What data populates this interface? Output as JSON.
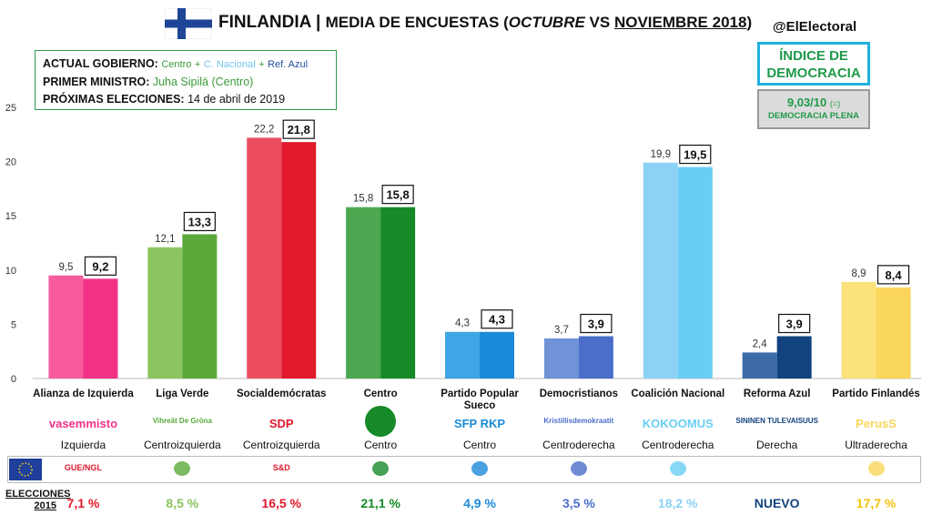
{
  "header": {
    "country": "FINLANDIA",
    "sep": "|",
    "subtitle_a": "MEDIA DE ENCUESTAS (",
    "month_a": "OCTUBRE",
    "vs": " VS ",
    "month_b": "NOVIEMBRE 2018",
    "close": ")",
    "handle": "@ElElectoral"
  },
  "government": {
    "gov_label": "ACTUAL GOBIERNO:",
    "gov_parties": [
      "Centro",
      "C. Nacional",
      "Ref. Azul"
    ],
    "plus": "+",
    "pm_label": "PRIMER MINISTRO:",
    "pm_value": "Juha Sipilä (Centro)",
    "elec_label": "PRÓXIMAS ELECCIONES:",
    "elec_value": "14 de abril de 2019"
  },
  "democracy": {
    "title_line1": "ÍNDICE DE",
    "title_line2": "DEMOCRACIA",
    "score": "9,03/10",
    "score_change": "(=)",
    "category": "DEMOCRACIA PLENA"
  },
  "chart_data": {
    "type": "bar",
    "ylim": [
      0,
      25
    ],
    "yticks": [
      0,
      5,
      10,
      15,
      20,
      25
    ],
    "categories": [
      "Alianza de Izquierda",
      "Liga Verde",
      "Socialdemócratas",
      "Centro",
      "Partido Popular Sueco",
      "Democristianos",
      "Coalición Nacional",
      "Reforma Azul",
      "Partido Finlandés"
    ],
    "series": [
      {
        "name": "Octubre",
        "values": [
          9.5,
          12.1,
          22.2,
          15.8,
          4.3,
          3.7,
          19.9,
          2.4,
          8.9
        ],
        "labels": [
          "9,5",
          "12,1",
          "22,2",
          "15,8",
          "4,3",
          "3,7",
          "19,9",
          "2,4",
          "8,9"
        ]
      },
      {
        "name": "Noviembre 2018",
        "values": [
          9.2,
          13.3,
          21.8,
          15.8,
          4.3,
          3.9,
          19.5,
          3.9,
          8.4
        ],
        "labels": [
          "9,2",
          "13,3",
          "21,8",
          "15,8",
          "4,3",
          "3,9",
          "19,5",
          "3,9",
          "8,4"
        ]
      }
    ],
    "colors_oct": [
      "#f75b9e",
      "#8cc460",
      "#eb4c5e",
      "#4ca850",
      "#3ea6e4",
      "#7092d6",
      "#8cd2f5",
      "#3d6aa8",
      "#fbe27a"
    ],
    "colors_nov": [
      "#f23286",
      "#5aa93a",
      "#e0192c",
      "#168a28",
      "#1b8ad8",
      "#4a6ec9",
      "#6acdf4",
      "#12437f",
      "#fad65b"
    ]
  },
  "parties": [
    {
      "ideology": "Izquierda",
      "logo_text": "vasemmisto",
      "elec2015": "7,1 %",
      "elec_color": "#e8192c",
      "eu_group": "GUE/NGL"
    },
    {
      "ideology": "Centroizquierda",
      "logo_text": "Vihreät De Gröna",
      "elec2015": "8,5 %",
      "elec_color": "#8cc460",
      "eu_group": ""
    },
    {
      "ideology": "Centroizquierda",
      "logo_text": "SDP",
      "elec2015": "16,5 %",
      "elec_color": "#e0192c",
      "eu_group": "S&D"
    },
    {
      "ideology": "Centro",
      "logo_text": "",
      "elec2015": "21,1 %",
      "elec_color": "#168a28",
      "eu_group": ""
    },
    {
      "ideology": "Centro",
      "logo_text": "SFP RKP",
      "elec2015": "4,9 %",
      "elec_color": "#1b8ad8",
      "eu_group": ""
    },
    {
      "ideology": "Centroderecha",
      "logo_text": "Kristillisdemokraatit",
      "elec2015": "3,5 %",
      "elec_color": "#4a6ec9",
      "eu_group": ""
    },
    {
      "ideology": "Centroderecha",
      "logo_text": "KOKOOMUS",
      "elec2015": "18,2 %",
      "elec_color": "#8cd2f5",
      "eu_group": ""
    },
    {
      "ideology": "Derecha",
      "logo_text": "SININEN TULEVAISUUS",
      "elec2015": "NUEVO",
      "elec_color": "#12437f",
      "eu_group": ""
    },
    {
      "ideology": "Ultraderecha",
      "logo_text": "PerusS",
      "elec2015": "17,7 %",
      "elec_color": "#f2c20a",
      "eu_group": ""
    }
  ],
  "elections_label_1": "ELECCIONES",
  "elections_label_2": "2015"
}
